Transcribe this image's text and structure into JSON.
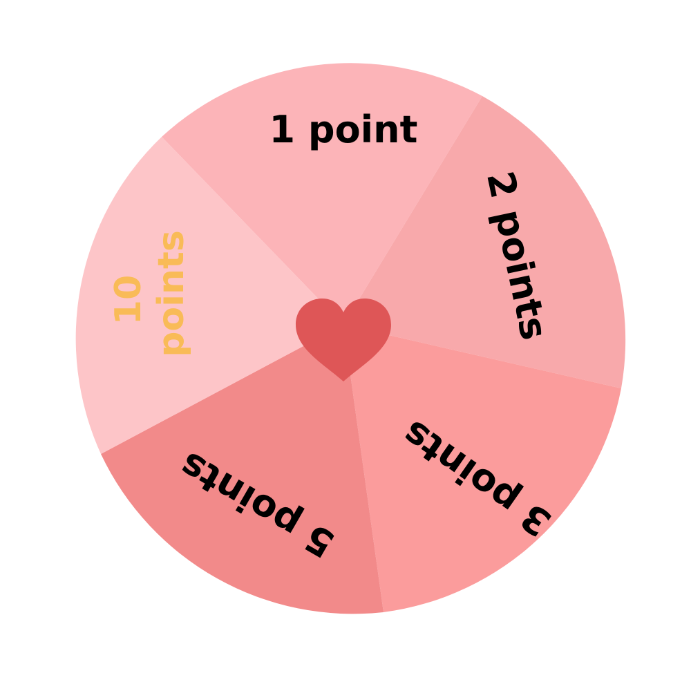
{
  "wheel": {
    "segments": [
      {
        "label": "1 point",
        "color": "#fcb4b8",
        "text_color": "#000000"
      },
      {
        "label": "2 points",
        "color": "#f8a9ab",
        "text_color": "#000000"
      },
      {
        "label": "3 points",
        "color": "#fb9c9c",
        "text_color": "#000000"
      },
      {
        "label": "5 points",
        "color": "#f28a8a",
        "text_color": "#000000"
      },
      {
        "label": "10 points",
        "color": "#fdc5c8",
        "text_color": "#f9bb57"
      }
    ],
    "center_icon": "heart-icon",
    "center_color": "#de5657"
  }
}
